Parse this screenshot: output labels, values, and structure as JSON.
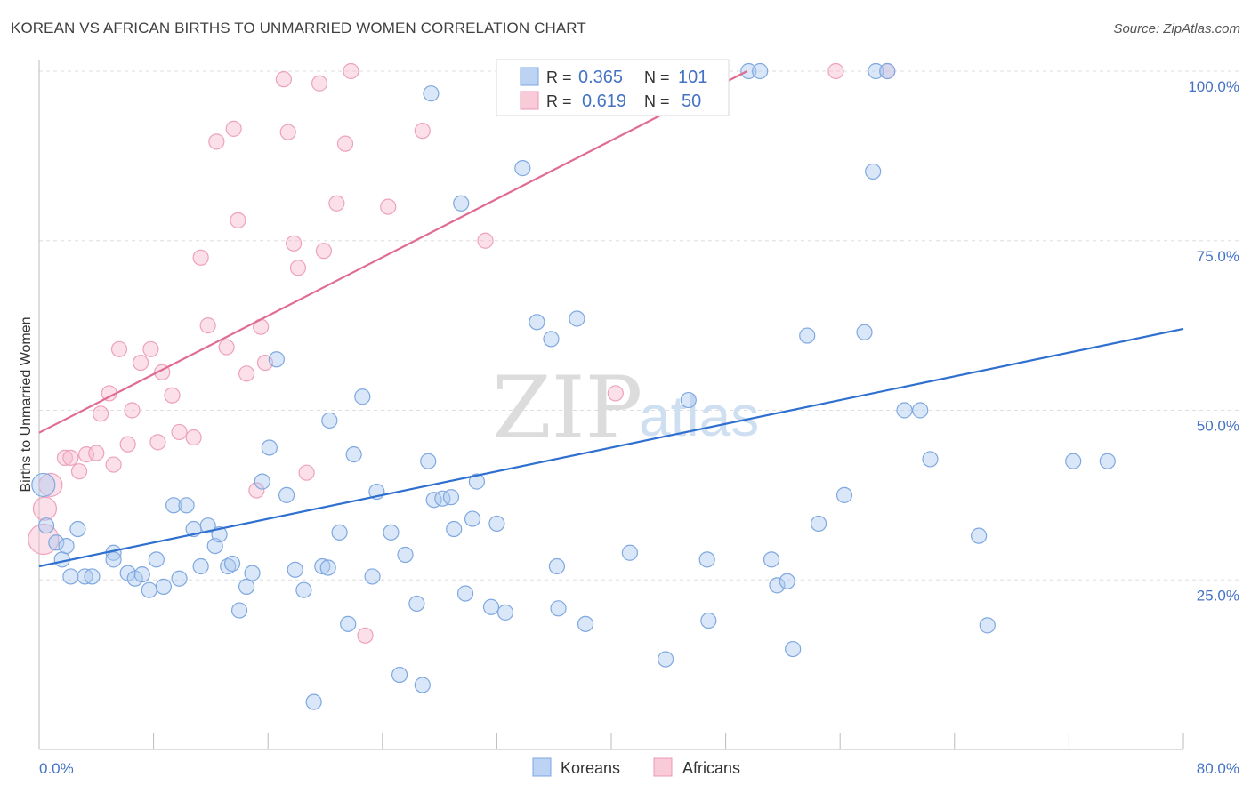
{
  "title": "KOREAN VS AFRICAN BIRTHS TO UNMARRIED WOMEN CORRELATION CHART",
  "source": "Source: ZipAtlas.com",
  "watermark": {
    "zip": "ZIP",
    "atlas": "atlas"
  },
  "legend": {
    "rows": [
      {
        "r_label": "R =",
        "r_value": "0.365",
        "n_label": "N =",
        "n_value": "101"
      },
      {
        "r_label": "R =",
        "r_value": "0.619",
        "n_label": "N =",
        "n_value": "50"
      }
    ]
  },
  "bottom_legend": [
    "Koreans",
    "Africans"
  ],
  "chart_data": {
    "type": "scatter",
    "title": "KOREAN VS AFRICAN BIRTHS TO UNMARRIED WOMEN CORRELATION CHART",
    "xlabel": "",
    "ylabel": "Births to Unmarried Women",
    "xlim": [
      0,
      80
    ],
    "ylim": [
      0,
      100
    ],
    "x_tick_labels": [
      "0.0%",
      "80.0%"
    ],
    "y_tick_labels": [
      "25.0%",
      "50.0%",
      "75.0%",
      "100.0%"
    ],
    "y_ticks": [
      25,
      50,
      75,
      100
    ],
    "grid": true,
    "colors": {
      "Koreans": "#5b8fd9",
      "Africans": "#e67fa0",
      "korean_line": "#2e6fcf",
      "african_line": "#e06b93"
    },
    "series": [
      {
        "name": "Koreans",
        "points": [
          [
            0.3,
            39
          ],
          [
            0.5,
            33
          ],
          [
            1.2,
            30.5
          ],
          [
            1.6,
            28
          ],
          [
            1.9,
            30
          ],
          [
            2.2,
            25.5
          ],
          [
            2.7,
            32.5
          ],
          [
            3.2,
            25.5
          ],
          [
            3.7,
            25.5
          ],
          [
            5.2,
            29
          ],
          [
            5.2,
            28
          ],
          [
            6.2,
            26
          ],
          [
            6.7,
            25.2
          ],
          [
            7.2,
            25.8
          ],
          [
            7.7,
            23.5
          ],
          [
            8.2,
            28
          ],
          [
            8.7,
            24
          ],
          [
            9.4,
            36
          ],
          [
            9.8,
            25.2
          ],
          [
            10.3,
            36
          ],
          [
            10.8,
            32.5
          ],
          [
            11.3,
            27
          ],
          [
            11.8,
            33
          ],
          [
            12.3,
            30
          ],
          [
            12.6,
            31.7
          ],
          [
            13.2,
            27
          ],
          [
            13.5,
            27.4
          ],
          [
            14,
            20.5
          ],
          [
            14.5,
            24
          ],
          [
            14.9,
            26
          ],
          [
            15.6,
            39.5
          ],
          [
            16.1,
            44.5
          ],
          [
            16.6,
            57.5
          ],
          [
            17.3,
            37.5
          ],
          [
            17.9,
            26.5
          ],
          [
            18.5,
            23.5
          ],
          [
            19.2,
            7
          ],
          [
            19.8,
            27
          ],
          [
            20.2,
            26.8
          ],
          [
            20.3,
            48.5
          ],
          [
            21,
            32
          ],
          [
            21.6,
            18.5
          ],
          [
            22,
            43.5
          ],
          [
            22.6,
            52
          ],
          [
            23.3,
            25.5
          ],
          [
            23.6,
            38
          ],
          [
            24.6,
            32
          ],
          [
            25.2,
            11
          ],
          [
            25.6,
            28.7
          ],
          [
            26.4,
            21.5
          ],
          [
            26.8,
            9.5
          ],
          [
            27.2,
            42.5
          ],
          [
            27.4,
            96.7
          ],
          [
            27.6,
            36.8
          ],
          [
            28.2,
            37
          ],
          [
            28.8,
            37.2
          ],
          [
            29,
            32.5
          ],
          [
            29.5,
            80.5
          ],
          [
            29.8,
            23
          ],
          [
            30.3,
            34
          ],
          [
            30.6,
            39.5
          ],
          [
            31.6,
            21
          ],
          [
            32,
            33.3
          ],
          [
            32.6,
            20.2
          ],
          [
            33,
            100
          ],
          [
            33.8,
            85.7
          ],
          [
            34.8,
            63
          ],
          [
            35.8,
            60.5
          ],
          [
            36.2,
            27
          ],
          [
            36.3,
            20.8
          ],
          [
            37.6,
            63.5
          ],
          [
            37.7,
            100
          ],
          [
            38.2,
            18.5
          ],
          [
            39.7,
            100
          ],
          [
            41.3,
            29
          ],
          [
            43.8,
            13.3
          ],
          [
            45.4,
            51.5
          ],
          [
            46.7,
            28
          ],
          [
            46.8,
            19
          ],
          [
            49.6,
            100
          ],
          [
            50.4,
            100
          ],
          [
            51.2,
            28
          ],
          [
            51.6,
            24.2
          ],
          [
            52.3,
            24.8
          ],
          [
            52.7,
            14.8
          ],
          [
            53.7,
            61
          ],
          [
            54.5,
            33.3
          ],
          [
            56.3,
            37.5
          ],
          [
            57.7,
            61.5
          ],
          [
            58.3,
            85.2
          ],
          [
            58.5,
            100
          ],
          [
            59.3,
            100
          ],
          [
            60.5,
            50
          ],
          [
            61.6,
            50
          ],
          [
            62.3,
            42.8
          ],
          [
            65.7,
            31.5
          ],
          [
            66.3,
            18.3
          ],
          [
            72.3,
            42.5
          ],
          [
            74.7,
            42.5
          ]
        ]
      },
      {
        "name": "Africans",
        "points": [
          [
            0.3,
            31
          ],
          [
            0.4,
            35.5
          ],
          [
            0.8,
            39
          ],
          [
            1.8,
            43
          ],
          [
            2.2,
            43
          ],
          [
            2.8,
            41
          ],
          [
            3.3,
            43.5
          ],
          [
            4,
            43.7
          ],
          [
            4.3,
            49.5
          ],
          [
            4.9,
            52.5
          ],
          [
            5.2,
            42
          ],
          [
            5.6,
            59
          ],
          [
            6.2,
            45
          ],
          [
            6.5,
            50
          ],
          [
            7.1,
            57
          ],
          [
            7.8,
            59
          ],
          [
            8.3,
            45.3
          ],
          [
            8.6,
            55.6
          ],
          [
            9.3,
            52.2
          ],
          [
            9.8,
            46.8
          ],
          [
            10.8,
            46
          ],
          [
            11.3,
            72.5
          ],
          [
            11.8,
            62.5
          ],
          [
            12.4,
            89.6
          ],
          [
            13.1,
            59.3
          ],
          [
            13.6,
            91.5
          ],
          [
            13.9,
            78
          ],
          [
            14.5,
            55.4
          ],
          [
            15.2,
            38.2
          ],
          [
            15.5,
            62.3
          ],
          [
            15.8,
            57
          ],
          [
            17.1,
            98.8
          ],
          [
            17.4,
            91
          ],
          [
            17.8,
            74.6
          ],
          [
            18.1,
            71
          ],
          [
            18.7,
            40.8
          ],
          [
            19.6,
            98.2
          ],
          [
            19.9,
            73.5
          ],
          [
            20.8,
            80.5
          ],
          [
            21.4,
            89.3
          ],
          [
            21.8,
            100
          ],
          [
            22.8,
            16.8
          ],
          [
            24.4,
            80
          ],
          [
            26.8,
            91.2
          ],
          [
            31.2,
            75
          ],
          [
            40.3,
            52.5
          ],
          [
            55.7,
            100
          ],
          [
            59.3,
            100
          ]
        ]
      }
    ],
    "trend_lines": [
      {
        "name": "Koreans",
        "x": [
          0,
          80
        ],
        "y": [
          27,
          62
        ]
      },
      {
        "name": "Africans",
        "x": [
          0,
          49.5
        ],
        "y": [
          46.7,
          100
        ]
      }
    ]
  }
}
